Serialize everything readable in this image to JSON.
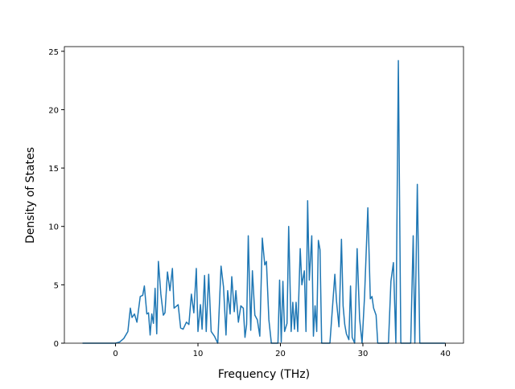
{
  "chart_data": {
    "type": "line",
    "x_label": "Frequency (THz)",
    "y_label": "Density of States",
    "series": [
      {
        "color": "#1f77b4",
        "x": [
          -4,
          0,
          0.5,
          1,
          1.5,
          1.8,
          2,
          2.3,
          2.6,
          3,
          3.3,
          3.5,
          3.8,
          4,
          4.2,
          4.4,
          4.6,
          4.8,
          5,
          5.2,
          5.5,
          5.8,
          6,
          6.3,
          6.6,
          6.9,
          7.1,
          7.6,
          7.9,
          8.2,
          8.6,
          8.9,
          9.2,
          9.5,
          9.8,
          10,
          10.3,
          10.5,
          10.8,
          11,
          11.3,
          11.6,
          12,
          12.4,
          12.8,
          13.1,
          13.4,
          13.6,
          13.9,
          14.1,
          14.4,
          14.6,
          14.9,
          15.2,
          15.5,
          15.7,
          15.9,
          16.1,
          16.4,
          16.6,
          16.9,
          17.2,
          17.5,
          17.8,
          18.1,
          18.3,
          18.6,
          18.9,
          19.7,
          19.9,
          20.1,
          20.3,
          20.5,
          20.8,
          21,
          21.3,
          21.5,
          21.7,
          21.9,
          22.1,
          22.4,
          22.6,
          22.9,
          23.1,
          23.3,
          23.5,
          23.8,
          24,
          24.2,
          24.4,
          24.6,
          24.8,
          25,
          26,
          26.6,
          26.8,
          27.1,
          27.4,
          27.6,
          27.8,
          28,
          28.3,
          28.5,
          28.7,
          29,
          29.3,
          29.6,
          29.9,
          30.2,
          30.6,
          30.9,
          31.1,
          31.3,
          31.6,
          31.8,
          33.1,
          33.4,
          33.7,
          34,
          34.3,
          34.6,
          35.8,
          36.1,
          36.3,
          36.6,
          36.9,
          40
        ],
        "values": [
          0,
          0,
          0.1,
          0.4,
          1,
          3,
          2.2,
          2.5,
          1.8,
          4,
          4.1,
          4.9,
          2.5,
          2.6,
          0.7,
          2.5,
          1.7,
          4.7,
          0.8,
          7,
          4.2,
          2.4,
          2.6,
          6.1,
          4.5,
          6.4,
          3,
          3.3,
          1.3,
          1.2,
          1.8,
          1.6,
          4.2,
          2.6,
          6.4,
          1,
          3.3,
          1.2,
          5.8,
          1,
          5.9,
          1,
          0.6,
          0,
          6.6,
          4.8,
          0.7,
          4.5,
          2.5,
          5.7,
          2.7,
          4.5,
          1.8,
          3.2,
          3,
          0.5,
          1.6,
          9.2,
          1.1,
          6.2,
          2.4,
          2,
          0.6,
          9,
          6.7,
          7,
          2,
          0,
          0,
          5.4,
          0.1,
          5.3,
          1,
          1.7,
          10,
          1,
          3.5,
          1.2,
          3.5,
          1,
          8.1,
          5,
          6.2,
          1,
          12.2,
          5.4,
          9.2,
          0.6,
          3.2,
          1,
          8.8,
          8,
          0,
          0,
          5.9,
          3.6,
          1.4,
          8.9,
          3.2,
          1.6,
          0.8,
          0.3,
          4.9,
          0.5,
          0,
          8.1,
          2.1,
          0,
          4,
          11.6,
          3.8,
          4,
          3,
          2.4,
          0,
          0,
          5.3,
          6.9,
          0,
          24.2,
          0,
          0,
          9.2,
          0,
          13.6,
          0,
          0
        ]
      }
    ],
    "xlim": [
      -6.2,
      42.2
    ],
    "xticks": [
      0,
      10,
      20,
      30,
      40
    ],
    "ylim": [
      0,
      25.4
    ],
    "yticks": [
      0,
      5,
      10,
      15,
      20,
      25
    ]
  }
}
